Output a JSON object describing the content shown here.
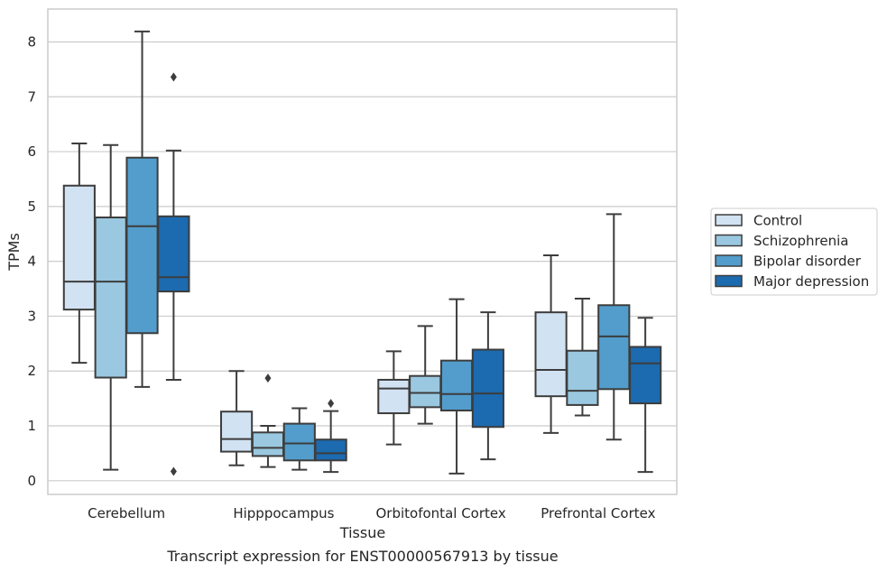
{
  "chart_data": {
    "type": "boxplot",
    "caption": "Transcript expression for ENST00000567913 by tissue",
    "xlabel": "Tissue",
    "ylabel": "TPMs",
    "ylim": [
      -0.25,
      8.6
    ],
    "yticks": [
      0,
      1,
      2,
      3,
      4,
      5,
      6,
      7,
      8
    ],
    "grid": true,
    "legend_position": "right",
    "categories": [
      "Cerebellum",
      "Hipppocampus",
      "Orbitofontal Cortex",
      "Prefrontal Cortex"
    ],
    "series": [
      {
        "name": "Control",
        "color": "#d1e2f2",
        "boxes": [
          {
            "whislo": 2.15,
            "q1": 3.12,
            "med": 3.63,
            "q3": 5.38,
            "whishi": 6.15,
            "fliers": []
          },
          {
            "whislo": 0.28,
            "q1": 0.53,
            "med": 0.76,
            "q3": 1.26,
            "whishi": 2.0,
            "fliers": []
          },
          {
            "whislo": 0.66,
            "q1": 1.23,
            "med": 1.68,
            "q3": 1.84,
            "whishi": 2.36,
            "fliers": []
          },
          {
            "whislo": 0.87,
            "q1": 1.54,
            "med": 2.02,
            "q3": 3.07,
            "whishi": 4.11,
            "fliers": []
          }
        ]
      },
      {
        "name": "Schizophrenia",
        "color": "#9ac8e0",
        "boxes": [
          {
            "whislo": 0.2,
            "q1": 1.88,
            "med": 3.63,
            "q3": 4.8,
            "whishi": 6.12,
            "fliers": []
          },
          {
            "whislo": 0.25,
            "q1": 0.45,
            "med": 0.6,
            "q3": 0.88,
            "whishi": 1.0,
            "fliers": [
              1.87
            ]
          },
          {
            "whislo": 1.04,
            "q1": 1.34,
            "med": 1.6,
            "q3": 1.91,
            "whishi": 2.82,
            "fliers": []
          },
          {
            "whislo": 1.19,
            "q1": 1.38,
            "med": 1.64,
            "q3": 2.37,
            "whishi": 3.32,
            "fliers": []
          }
        ]
      },
      {
        "name": "Bipolar disorder",
        "color": "#529dcc",
        "boxes": [
          {
            "whislo": 1.71,
            "q1": 2.69,
            "med": 4.64,
            "q3": 5.89,
            "whishi": 8.19,
            "fliers": []
          },
          {
            "whislo": 0.2,
            "q1": 0.37,
            "med": 0.68,
            "q3": 1.04,
            "whishi": 1.32,
            "fliers": []
          },
          {
            "whislo": 0.13,
            "q1": 1.28,
            "med": 1.58,
            "q3": 2.19,
            "whishi": 3.31,
            "fliers": []
          },
          {
            "whislo": 0.75,
            "q1": 1.67,
            "med": 2.63,
            "q3": 3.2,
            "whishi": 4.86,
            "fliers": []
          }
        ]
      },
      {
        "name": "Major depression",
        "color": "#1c6aaf",
        "boxes": [
          {
            "whislo": 1.84,
            "q1": 3.45,
            "med": 3.71,
            "q3": 4.82,
            "whishi": 6.02,
            "fliers": [
              7.36,
              0.17
            ]
          },
          {
            "whislo": 0.16,
            "q1": 0.37,
            "med": 0.5,
            "q3": 0.75,
            "whishi": 1.27,
            "fliers": [
              1.41
            ]
          },
          {
            "whislo": 0.39,
            "q1": 0.98,
            "med": 1.59,
            "q3": 2.39,
            "whishi": 3.07,
            "fliers": []
          },
          {
            "whislo": 0.16,
            "q1": 1.41,
            "med": 2.14,
            "q3": 2.44,
            "whishi": 2.97,
            "fliers": []
          }
        ]
      }
    ]
  }
}
